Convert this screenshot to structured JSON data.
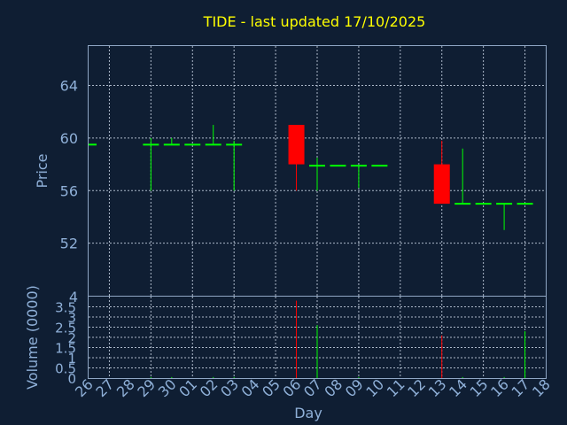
{
  "chart_data": {
    "type": "candlestick",
    "title": "TIDE - last updated 17/10/2025",
    "xlabel": "Day",
    "price_panel": {
      "ylabel": "Price",
      "ylim": [
        48,
        67
      ],
      "yticks": [
        "64",
        "60",
        "56",
        "52"
      ],
      "ytick_values": [
        64,
        60,
        56,
        52
      ]
    },
    "volume_panel": {
      "ylabel": "Volume (0000)",
      "ylim": [
        0,
        4
      ],
      "yticks": [
        "3.5",
        "3",
        "2.5",
        "2",
        "1.5",
        "1",
        "0.5",
        "0"
      ],
      "ytick_values": [
        3.5,
        3,
        2.5,
        2,
        1.5,
        1,
        0.5,
        0
      ],
      "top_label": "4"
    },
    "x_ticks": [
      "26",
      "27",
      "28",
      "29",
      "30",
      "01",
      "02",
      "03",
      "04",
      "05",
      "06",
      "07",
      "08",
      "09",
      "10",
      "11",
      "12",
      "13",
      "14",
      "15",
      "16",
      "17",
      "18"
    ],
    "candles": [
      {
        "day": "26",
        "open": 59.5,
        "close": 59.5,
        "high": 59.5,
        "low": 59.5,
        "volume": 0,
        "color": "green"
      },
      {
        "day": "29",
        "open": 59.5,
        "close": 59.5,
        "high": 60,
        "low": 56,
        "volume": 0.05,
        "color": "green"
      },
      {
        "day": "30",
        "open": 59.5,
        "close": 59.5,
        "high": 60,
        "low": 59.5,
        "volume": 0.05,
        "color": "green"
      },
      {
        "day": "01",
        "open": 59.5,
        "close": 59.5,
        "high": 59.5,
        "low": 59.5,
        "volume": 0,
        "color": "green"
      },
      {
        "day": "02",
        "open": 59.5,
        "close": 59.5,
        "high": 61,
        "low": 59.5,
        "volume": 0.05,
        "color": "green"
      },
      {
        "day": "03",
        "open": 59.5,
        "close": 59.5,
        "high": 59.8,
        "low": 56,
        "volume": 0.05,
        "color": "green"
      },
      {
        "day": "06",
        "open": 61,
        "close": 58,
        "high": 61,
        "low": 56,
        "volume": 3.8,
        "color": "red"
      },
      {
        "day": "07",
        "open": 57.9,
        "close": 57.9,
        "high": 58.5,
        "low": 56,
        "volume": 2.6,
        "color": "green"
      },
      {
        "day": "08",
        "open": 57.9,
        "close": 57.9,
        "high": 57.9,
        "low": 57.9,
        "volume": 0,
        "color": "green"
      },
      {
        "day": "09",
        "open": 57.9,
        "close": 57.9,
        "high": 57.9,
        "low": 56.2,
        "volume": 0.05,
        "color": "green"
      },
      {
        "day": "10",
        "open": 57.9,
        "close": 57.9,
        "high": 57.9,
        "low": 57.9,
        "volume": 0,
        "color": "green"
      },
      {
        "day": "13",
        "open": 58,
        "close": 55,
        "high": 59.8,
        "low": 55,
        "volume": 2.1,
        "color": "red"
      },
      {
        "day": "14",
        "open": 55,
        "close": 55,
        "high": 59.2,
        "low": 55,
        "volume": 0.05,
        "color": "green"
      },
      {
        "day": "15",
        "open": 55,
        "close": 55,
        "high": 55,
        "low": 55,
        "volume": 0,
        "color": "green"
      },
      {
        "day": "16",
        "open": 55,
        "close": 55,
        "high": 55,
        "low": 53,
        "volume": 0.05,
        "color": "green"
      },
      {
        "day": "17",
        "open": 55,
        "close": 55,
        "high": 55,
        "low": 55,
        "volume": 2.3,
        "color": "green"
      }
    ],
    "colors": {
      "background": "#0f1e33",
      "up": "#00ff00",
      "down": "#ff0000",
      "title": "#ffff00",
      "text": "#8fb0d8"
    }
  }
}
